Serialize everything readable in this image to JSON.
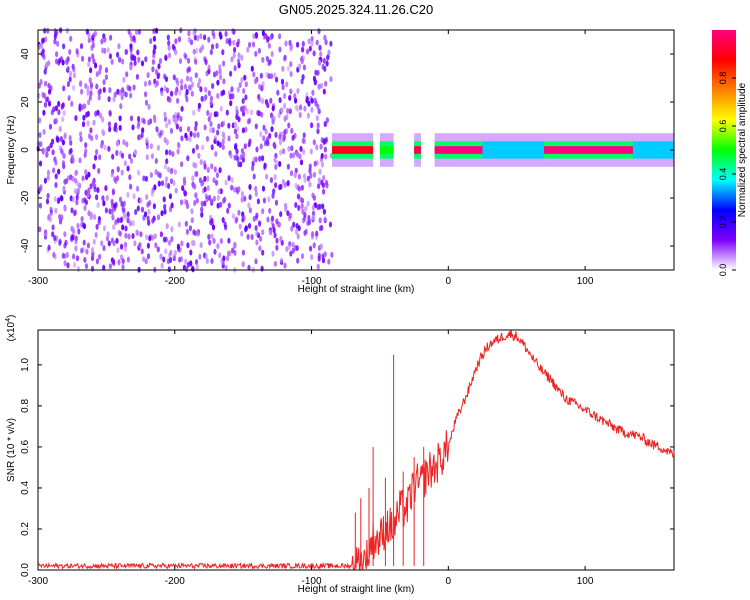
{
  "figure": {
    "title": "GN05.2025.324.11.26.C20"
  },
  "colorbar": {
    "label": "Normalized spectral amplitude",
    "ticks": [
      {
        "value": 0.0,
        "label": "0.0"
      },
      {
        "value": 0.2,
        "label": "0.2"
      },
      {
        "value": 0.4,
        "label": "0.4"
      },
      {
        "value": 0.6,
        "label": "0.6"
      },
      {
        "value": 0.8,
        "label": "0.8"
      }
    ],
    "range": [
      0,
      1
    ],
    "colors": [
      "#ffffff",
      "#8000ff",
      "#0000ff",
      "#00ffff",
      "#00ff00",
      "#ffff00",
      "#ff8000",
      "#ff0000",
      "#ff0080"
    ]
  },
  "chart_data": [
    {
      "type": "heatmap",
      "title": "",
      "xlabel": "Height of straight line (km)",
      "ylabel": "Frequency (Hz)",
      "xlim": [
        -300,
        165
      ],
      "ylim": [
        -50,
        50
      ],
      "xticks": [
        -300,
        -200,
        -100,
        0,
        100
      ],
      "xtick_labels": [
        "-300",
        "-200",
        "-100",
        "0",
        "100"
      ],
      "yticks": [
        -40,
        -20,
        0,
        20,
        40
      ],
      "ytick_labels": [
        "-40",
        "-20",
        "0",
        "20",
        "40"
      ],
      "noise_region_x": [
        -300,
        -85
      ],
      "noise_amplitude_range": [
        0.0,
        0.2
      ],
      "signal_band": {
        "frequency": 0,
        "half_width_hz": 2
      },
      "signal_segments": [
        {
          "x": [
            -85,
            -55
          ],
          "amplitude": 0.9
        },
        {
          "x": [
            -50,
            -40
          ],
          "amplitude": 0.5
        },
        {
          "x": [
            -25,
            -20
          ],
          "amplitude": 0.95
        },
        {
          "x": [
            -10,
            25
          ],
          "amplitude": 1.0
        },
        {
          "x": [
            25,
            70
          ],
          "amplitude": 0.35
        },
        {
          "x": [
            70,
            135
          ],
          "amplitude": 1.0
        },
        {
          "x": [
            135,
            165
          ],
          "amplitude": 0.35
        }
      ]
    },
    {
      "type": "line",
      "title": "",
      "xlabel": "Height of straight line (km)",
      "ylabel": "SNR (10 * v/v)",
      "scale_note": "(x10",
      "scale_exponent": "4",
      "xlim": [
        -300,
        165
      ],
      "ylim": [
        0,
        1.17
      ],
      "xticks": [
        -300,
        -200,
        -100,
        0,
        100
      ],
      "xtick_labels": [
        "-300",
        "-200",
        "-100",
        "0",
        "100"
      ],
      "yticks": [
        0.0,
        0.2,
        0.4,
        0.6,
        0.8,
        1.0
      ],
      "ytick_labels": [
        "0.0",
        "0.2",
        "0.4",
        "0.6",
        "0.8",
        "1.0"
      ],
      "series": [
        {
          "color": "#ee2222",
          "x": [
            -300,
            -250,
            -200,
            -150,
            -100,
            -70,
            -60,
            -55,
            -50,
            -45,
            -40,
            -35,
            -30,
            -25,
            -20,
            -15,
            -10,
            -5,
            0,
            5,
            10,
            15,
            20,
            25,
            30,
            35,
            40,
            45,
            50,
            55,
            60,
            65,
            70,
            75,
            80,
            85,
            90,
            95,
            100,
            105,
            110,
            115,
            120,
            125,
            130,
            135,
            140,
            145,
            150,
            155,
            160,
            165
          ],
          "y": [
            0.02,
            0.02,
            0.02,
            0.02,
            0.02,
            0.02,
            0.05,
            0.15,
            0.15,
            0.22,
            0.2,
            0.3,
            0.3,
            0.42,
            0.42,
            0.48,
            0.5,
            0.55,
            0.6,
            0.72,
            0.8,
            0.88,
            0.98,
            1.05,
            1.1,
            1.12,
            1.14,
            1.15,
            1.14,
            1.1,
            1.05,
            1.0,
            0.96,
            0.93,
            0.88,
            0.84,
            0.82,
            0.8,
            0.78,
            0.76,
            0.74,
            0.72,
            0.7,
            0.68,
            0.67,
            0.66,
            0.65,
            0.63,
            0.61,
            0.6,
            0.58,
            0.56
          ]
        }
      ],
      "spikes": [
        {
          "x": -68,
          "y": 0.28
        },
        {
          "x": -64,
          "y": 0.35
        },
        {
          "x": -58,
          "y": 0.4
        },
        {
          "x": -55,
          "y": 0.6
        },
        {
          "x": -46,
          "y": 0.45
        },
        {
          "x": -40,
          "y": 1.05
        },
        {
          "x": -33,
          "y": 0.48
        },
        {
          "x": -25,
          "y": 0.55
        },
        {
          "x": -18,
          "y": 0.6
        }
      ]
    }
  ]
}
